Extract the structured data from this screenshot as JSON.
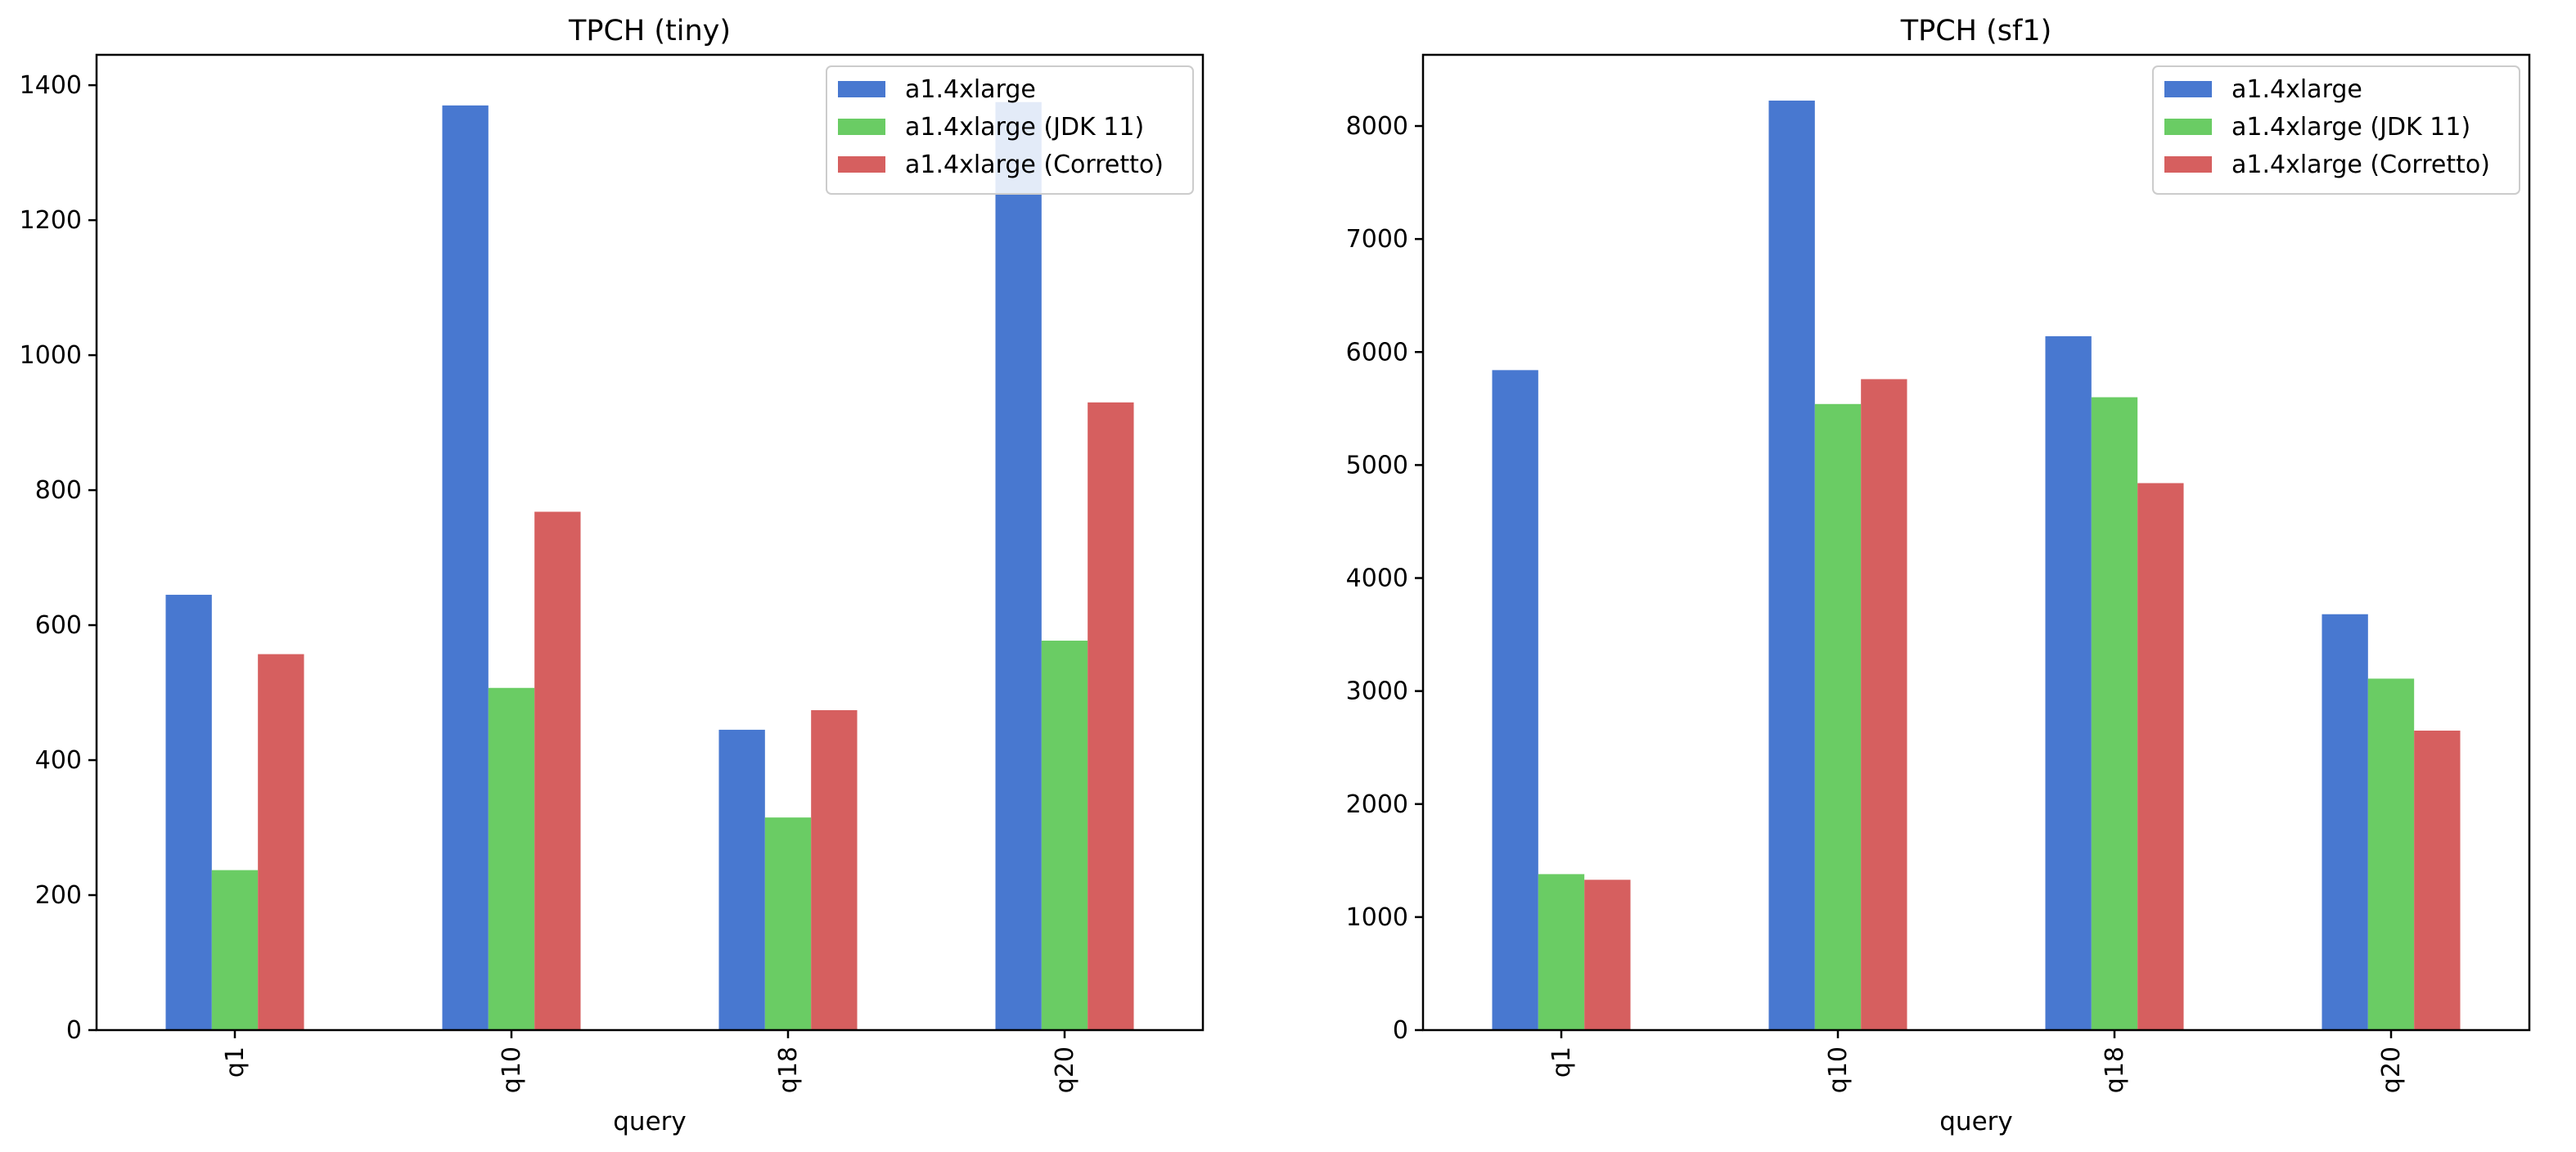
{
  "colors": {
    "series": [
      "#4878d0",
      "#6acc64",
      "#d65f5f"
    ],
    "axis": "#000000",
    "legend_border": "#cccccc"
  },
  "chart_data": [
    {
      "type": "bar",
      "title": "TPCH (tiny)",
      "xlabel": "query",
      "ylabel": "",
      "categories": [
        "q1",
        "q10",
        "q18",
        "q20"
      ],
      "series": [
        {
          "name": "a1.4xlarge",
          "values": [
            645,
            1370,
            445,
            1375
          ]
        },
        {
          "name": "a1.4xlarge (JDK 11)",
          "values": [
            237,
            507,
            315,
            577
          ]
        },
        {
          "name": "a1.4xlarge (Corretto)",
          "values": [
            557,
            768,
            474,
            930
          ]
        }
      ],
      "ylim": [
        0,
        1445
      ],
      "yticks": [
        0,
        200,
        400,
        600,
        800,
        1000,
        1200,
        1400
      ],
      "legend": "top-right",
      "grid": false
    },
    {
      "type": "bar",
      "title": "TPCH (sf1)",
      "xlabel": "query",
      "ylabel": "",
      "categories": [
        "q1",
        "q10",
        "q18",
        "q20"
      ],
      "series": [
        {
          "name": "a1.4xlarge",
          "values": [
            5840,
            8225,
            6140,
            3680
          ]
        },
        {
          "name": "a1.4xlarge (JDK 11)",
          "values": [
            1380,
            5540,
            5600,
            3110
          ]
        },
        {
          "name": "a1.4xlarge (Corretto)",
          "values": [
            1330,
            5760,
            4840,
            2650
          ]
        }
      ],
      "ylim": [
        0,
        8630
      ],
      "yticks": [
        0,
        1000,
        2000,
        3000,
        4000,
        5000,
        6000,
        7000,
        8000
      ],
      "legend": "top-right",
      "grid": false
    }
  ]
}
